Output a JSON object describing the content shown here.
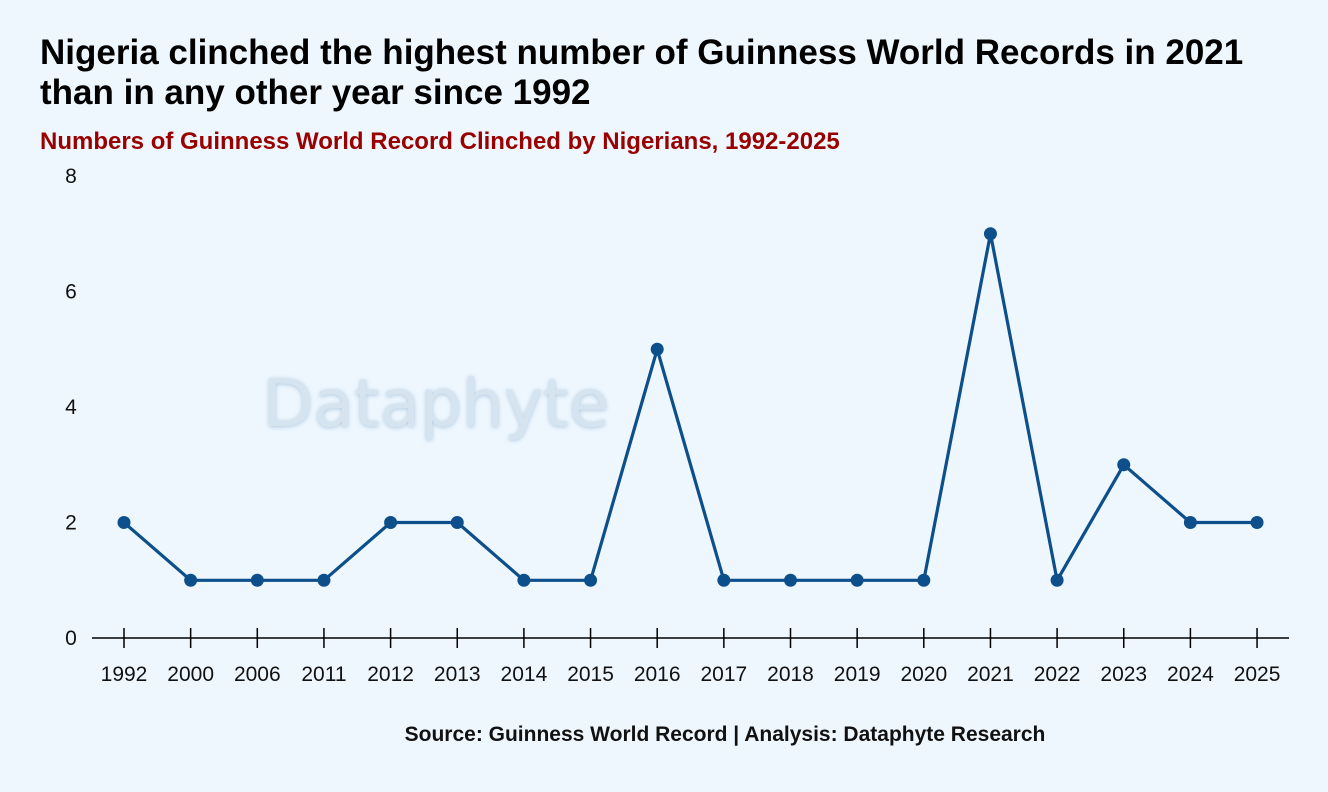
{
  "header": {
    "title": "Nigeria clinched the highest number of Guinness World Records in 2021 than in any other year since 1992",
    "subtitle": "Numbers of Guinness World Record Clinched by Nigerians, 1992-2025"
  },
  "watermark": "Dataphyte",
  "footer": {
    "source": "Source: Guinness World Record | Analysis: Dataphyte Research"
  },
  "colors": {
    "background": "#eef7fe",
    "line": "#0d4f8b",
    "subtitle": "#990000",
    "axis": "#000000",
    "watermark": "#d6e4f0"
  },
  "chart_data": {
    "type": "line",
    "title": "Numbers of Guinness World Record Clinched by Nigerians, 1992-2025",
    "xlabel": "",
    "ylabel": "",
    "categories": [
      "1992",
      "2000",
      "2006",
      "2011",
      "2012",
      "2013",
      "2014",
      "2015",
      "2016",
      "2017",
      "2018",
      "2019",
      "2020",
      "2021",
      "2022",
      "2023",
      "2024",
      "2025"
    ],
    "series": [
      {
        "values": [
          2,
          1,
          1,
          1,
          2,
          2,
          1,
          1,
          5,
          1,
          1,
          1,
          1,
          7,
          1,
          3,
          2,
          2
        ]
      }
    ],
    "ylim": [
      0,
      8
    ],
    "yticks": [
      "0",
      "2",
      "4",
      "6",
      "8"
    ],
    "grid": false,
    "legend": "none",
    "markers": true
  }
}
